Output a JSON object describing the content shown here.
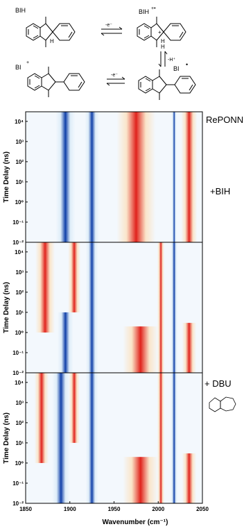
{
  "scheme": {
    "labels": [
      "BIH",
      "BIH",
      "+•",
      "BI",
      "+",
      "BI",
      "•"
    ],
    "arrows": [
      "-e⁻",
      "-H⁺",
      "-e⁻"
    ],
    "atoms": [
      "H",
      "H",
      "+",
      "H"
    ]
  },
  "chart_data": [
    {
      "type": "heatmap",
      "panel_label": "RePONN",
      "xlabel": "",
      "ylabel": "Time Delay (ns)",
      "x_range": [
        1850,
        2050
      ],
      "y_scale": "log",
      "y_range": [
        0.01,
        30000
      ],
      "y_ticks": [
        "10⁴",
        "10³",
        "10²",
        "10¹",
        "10⁰",
        "10⁻¹",
        "10⁻²"
      ],
      "bands": [
        {
          "x_center": 1895,
          "width": 22,
          "sign": "negative",
          "t_start": 0.01,
          "t_end": 30000
        },
        {
          "x_center": 1925,
          "width": 16,
          "sign": "negative",
          "t_start": 0.01,
          "t_end": 30000
        },
        {
          "x_center": 1975,
          "width": 44,
          "sign": "positive",
          "t_start": 0.01,
          "t_end": 30000
        },
        {
          "x_center": 2018,
          "width": 6,
          "sign": "negative",
          "t_start": 0.01,
          "t_end": 30000
        },
        {
          "x_center": 2035,
          "width": 18,
          "sign": "positive",
          "t_start": 0.01,
          "t_end": 30000
        }
      ]
    },
    {
      "type": "heatmap",
      "panel_label": "+BIH",
      "xlabel": "",
      "ylabel": "Time Delay (ns)",
      "x_range": [
        1850,
        2050
      ],
      "y_scale": "log",
      "y_range": [
        0.01,
        30000
      ],
      "y_ticks": [
        "10⁴",
        "10³",
        "10²",
        "10¹",
        "10⁰",
        "10⁻¹",
        "10⁻²"
      ],
      "bands": [
        {
          "x_center": 1872,
          "width": 22,
          "sign": "positive",
          "t_start": 1,
          "t_end": 30000
        },
        {
          "x_center": 1895,
          "width": 18,
          "sign": "negative",
          "t_start": 0.01,
          "t_end": 10
        },
        {
          "x_center": 1905,
          "width": 14,
          "sign": "positive",
          "t_start": 10,
          "t_end": 30000
        },
        {
          "x_center": 1925,
          "width": 14,
          "sign": "negative",
          "t_start": 0.01,
          "t_end": 30000
        },
        {
          "x_center": 1980,
          "width": 40,
          "sign": "positive",
          "t_start": 0.01,
          "t_end": 2
        },
        {
          "x_center": 2003,
          "width": 8,
          "sign": "positive",
          "t_start": 0.01,
          "t_end": 30000
        },
        {
          "x_center": 2018,
          "width": 8,
          "sign": "negative",
          "t_start": 0.01,
          "t_end": 30000
        },
        {
          "x_center": 2035,
          "width": 16,
          "sign": "positive",
          "t_start": 0.01,
          "t_end": 3
        }
      ]
    },
    {
      "type": "heatmap",
      "panel_label": "+ DBU",
      "xlabel": "Wavenumber (cm⁻¹)",
      "ylabel": "Time Delay (ns)",
      "x_range": [
        1850,
        2050
      ],
      "x_ticks": [
        1850,
        1900,
        1950,
        2000,
        2050
      ],
      "y_scale": "log",
      "y_range": [
        0.01,
        30000
      ],
      "y_ticks": [
        "10⁴",
        "10³",
        "10²",
        "10¹",
        "10⁰",
        "10⁻¹",
        "10⁻²"
      ],
      "bands": [
        {
          "x_center": 1868,
          "width": 16,
          "sign": "positive",
          "t_start": 1,
          "t_end": 30000
        },
        {
          "x_center": 1890,
          "width": 20,
          "sign": "negative",
          "t_start": 0.01,
          "t_end": 30000
        },
        {
          "x_center": 1905,
          "width": 12,
          "sign": "positive",
          "t_start": 10,
          "t_end": 30000
        },
        {
          "x_center": 1925,
          "width": 14,
          "sign": "negative",
          "t_start": 0.01,
          "t_end": 30000
        },
        {
          "x_center": 1980,
          "width": 40,
          "sign": "positive",
          "t_start": 0.01,
          "t_end": 2
        },
        {
          "x_center": 2003,
          "width": 8,
          "sign": "positive",
          "t_start": 0.01,
          "t_end": 30000
        },
        {
          "x_center": 2018,
          "width": 8,
          "sign": "negative",
          "t_start": 0.01,
          "t_end": 30000
        },
        {
          "x_center": 2035,
          "width": 16,
          "sign": "positive",
          "t_start": 0.01,
          "t_end": 3
        }
      ]
    }
  ],
  "colors": {
    "positive_strong": "#e0221c",
    "positive_weak": "#fbe3c4",
    "negative_strong": "#0e3ea8",
    "negative_weak": "#dcecf8",
    "background": "#ffffff"
  }
}
